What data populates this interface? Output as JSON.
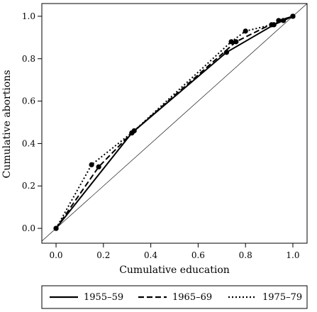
{
  "chart_data": {
    "type": "line",
    "title": "",
    "xlabel": "Cumulative education",
    "ylabel": "Cumulative abortions",
    "xlim": [
      -0.06,
      1.06
    ],
    "ylim": [
      -0.07,
      1.06
    ],
    "x_ticks": [
      "0.0",
      "0.2",
      "0.4",
      "0.6",
      "0.8",
      "1.0"
    ],
    "y_ticks": [
      "0.0",
      "0.2",
      "0.4",
      "0.6",
      "0.8",
      "1.0"
    ],
    "grid": false,
    "reference_line": "diagonal",
    "legend_position": "bottom",
    "series": [
      {
        "name": "1955–59",
        "style": "solid",
        "points": [
          [
            0.0,
            0.0
          ],
          [
            0.32,
            0.45
          ],
          [
            0.72,
            0.83
          ],
          [
            0.92,
            0.96
          ],
          [
            1.0,
            1.0
          ]
        ]
      },
      {
        "name": "1965–69",
        "style": "dashed",
        "points": [
          [
            0.0,
            0.0
          ],
          [
            0.18,
            0.29
          ],
          [
            0.32,
            0.45
          ],
          [
            0.76,
            0.88
          ],
          [
            0.94,
            0.98
          ],
          [
            1.0,
            1.0
          ]
        ]
      },
      {
        "name": "1975–79",
        "style": "dotted",
        "points": [
          [
            0.0,
            0.0
          ],
          [
            0.15,
            0.3
          ],
          [
            0.33,
            0.46
          ],
          [
            0.74,
            0.88
          ],
          [
            0.8,
            0.93
          ],
          [
            0.91,
            0.96
          ],
          [
            0.96,
            0.98
          ],
          [
            1.0,
            1.0
          ]
        ]
      }
    ]
  }
}
